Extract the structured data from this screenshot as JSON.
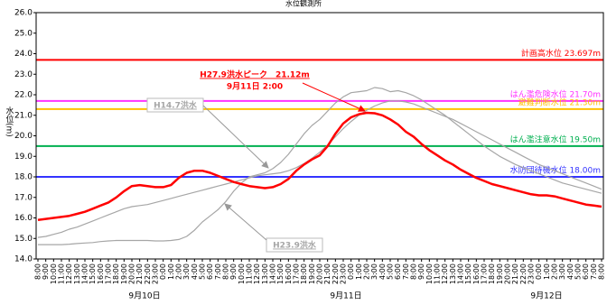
{
  "chart_data": {
    "type": "line",
    "title": "水位観測所",
    "y_label": "水位(m)",
    "categories": [
      "8:00",
      "9:00",
      "10:00",
      "11:00",
      "12:00",
      "13:00",
      "14:00",
      "15:00",
      "16:00",
      "17:00",
      "18:00",
      "19:00",
      "20:00",
      "21:00",
      "22:00",
      "23:00",
      "0:00",
      "1:00",
      "2:00",
      "3:00",
      "4:00",
      "5:00",
      "6:00",
      "7:00",
      "8:00",
      "9:00",
      "10:00",
      "11:00",
      "12:00",
      "13:00",
      "14:00",
      "15:00",
      "16:00",
      "17:00",
      "18:00",
      "19:00",
      "20:00",
      "21:00",
      "22:00",
      "23:00",
      "0:00",
      "1:00",
      "2:00",
      "3:00",
      "4:00",
      "5:00",
      "6:00",
      "7:00",
      "8:00",
      "9:00",
      "10:00",
      "11:00",
      "12:00",
      "13:00",
      "14:00",
      "15:00",
      "16:00",
      "17:00",
      "18:00",
      "19:00",
      "20:00",
      "21:00",
      "22:00",
      "23:00",
      "0:00",
      "1:00",
      "2:00",
      "3:00",
      "4:00",
      "5:00",
      "6:00",
      "7:00",
      "8:00"
    ],
    "date_labels": [
      "9月10日",
      "9月11日",
      "9月12日"
    ],
    "series": [
      {
        "color": "#ff0000",
        "values": [
          15.9,
          15.95,
          16.0,
          16.05,
          16.1,
          16.2,
          16.3,
          16.45,
          16.6,
          16.75,
          17.0,
          17.3,
          17.55,
          17.6,
          17.55,
          17.5,
          17.5,
          17.6,
          17.95,
          18.2,
          18.3,
          18.3,
          18.2,
          18.05,
          17.9,
          17.75,
          17.65,
          17.55,
          17.5,
          17.45,
          17.5,
          17.65,
          17.9,
          18.3,
          18.6,
          18.85,
          19.05,
          19.5,
          20.1,
          20.6,
          20.9,
          21.05,
          21.12,
          21.1,
          21.0,
          20.8,
          20.55,
          20.2,
          19.95,
          19.6,
          19.3,
          19.05,
          18.8,
          18.6,
          18.35,
          18.15,
          17.95,
          17.8,
          17.65,
          17.55,
          17.45,
          17.35,
          17.25,
          17.15,
          17.1,
          17.1,
          17.05,
          16.95,
          16.85,
          16.75,
          16.65,
          16.6,
          16.55
        ]
      },
      {
        "name": "H14.7洪水",
        "color": "#a6a6a6",
        "values": [
          15.05,
          15.1,
          15.2,
          15.3,
          15.45,
          15.55,
          15.7,
          15.85,
          16.0,
          16.15,
          16.3,
          16.45,
          16.55,
          16.6,
          16.65,
          16.75,
          16.85,
          16.95,
          17.05,
          17.15,
          17.25,
          17.35,
          17.45,
          17.55,
          17.65,
          17.75,
          17.85,
          17.95,
          18.05,
          18.1,
          18.15,
          18.2,
          18.3,
          18.45,
          18.65,
          18.9,
          19.2,
          19.55,
          19.95,
          20.35,
          20.7,
          21.0,
          21.25,
          21.45,
          21.6,
          21.7,
          21.7,
          21.65,
          21.55,
          21.4,
          21.25,
          21.1,
          20.95,
          20.8,
          20.6,
          20.4,
          20.2,
          20.0,
          19.8,
          19.6,
          19.4,
          19.2,
          19.0,
          18.8,
          18.6,
          18.45,
          18.3,
          18.15,
          18.0,
          17.85,
          17.7,
          17.55,
          17.4
        ]
      },
      {
        "name": "H23.9洪水",
        "color": "#a6a6a6",
        "values": [
          14.7,
          14.7,
          14.7,
          14.7,
          14.72,
          14.75,
          14.78,
          14.8,
          14.85,
          14.88,
          14.9,
          14.9,
          14.9,
          14.9,
          14.9,
          14.88,
          14.88,
          14.9,
          14.95,
          15.1,
          15.4,
          15.8,
          16.1,
          16.4,
          16.8,
          17.3,
          17.7,
          18.0,
          18.1,
          18.2,
          18.4,
          18.7,
          19.1,
          19.6,
          20.1,
          20.5,
          20.8,
          21.2,
          21.6,
          21.9,
          22.1,
          22.15,
          22.2,
          22.35,
          22.3,
          22.15,
          22.2,
          22.1,
          21.95,
          21.75,
          21.5,
          21.25,
          21.0,
          20.7,
          20.4,
          20.1,
          19.8,
          19.5,
          19.25,
          19.0,
          18.8,
          18.6,
          18.45,
          18.3,
          18.15,
          18.0,
          17.85,
          17.7,
          17.6,
          17.5,
          17.4,
          17.3,
          17.2
        ]
      }
    ],
    "reference_lines": [
      {
        "label": "計画高水位 23.697m",
        "value": 23.697,
        "color": "#ff0000"
      },
      {
        "label": "はん濫危険水位 21.70m",
        "value": 21.7,
        "color": "#ff33ff"
      },
      {
        "label": "避難判断水位 21.30m",
        "value": 21.3,
        "color": "#ffc000"
      },
      {
        "label": "はん濫注意水位 19.50m",
        "value": 19.5,
        "color": "#00b050"
      },
      {
        "label": "水防団待機水位 18.00m",
        "value": 18.0,
        "color": "#3333ff"
      }
    ],
    "annotations": [
      "H27.9洪水ピーク　21.12m",
      "9月11日 2:00"
    ],
    "ylim": [
      14,
      26
    ],
    "yticks": [
      {
        "value": 14,
        "label": "14.0"
      },
      {
        "value": 15,
        "label": "15.0"
      },
      {
        "value": 16,
        "label": "16.0"
      },
      {
        "value": 17,
        "label": "17.0"
      },
      {
        "value": 18,
        "label": "18.0"
      },
      {
        "value": 19,
        "label": "19.0"
      },
      {
        "value": 20,
        "label": "20.0"
      },
      {
        "value": 21,
        "label": "21.0"
      },
      {
        "value": 22,
        "label": "22.0"
      },
      {
        "value": 23,
        "label": "23.0"
      },
      {
        "value": 24,
        "label": "24.0"
      },
      {
        "value": 25,
        "label": "25.0"
      },
      {
        "value": 26,
        "label": "26.0"
      }
    ],
    "grid": false
  }
}
